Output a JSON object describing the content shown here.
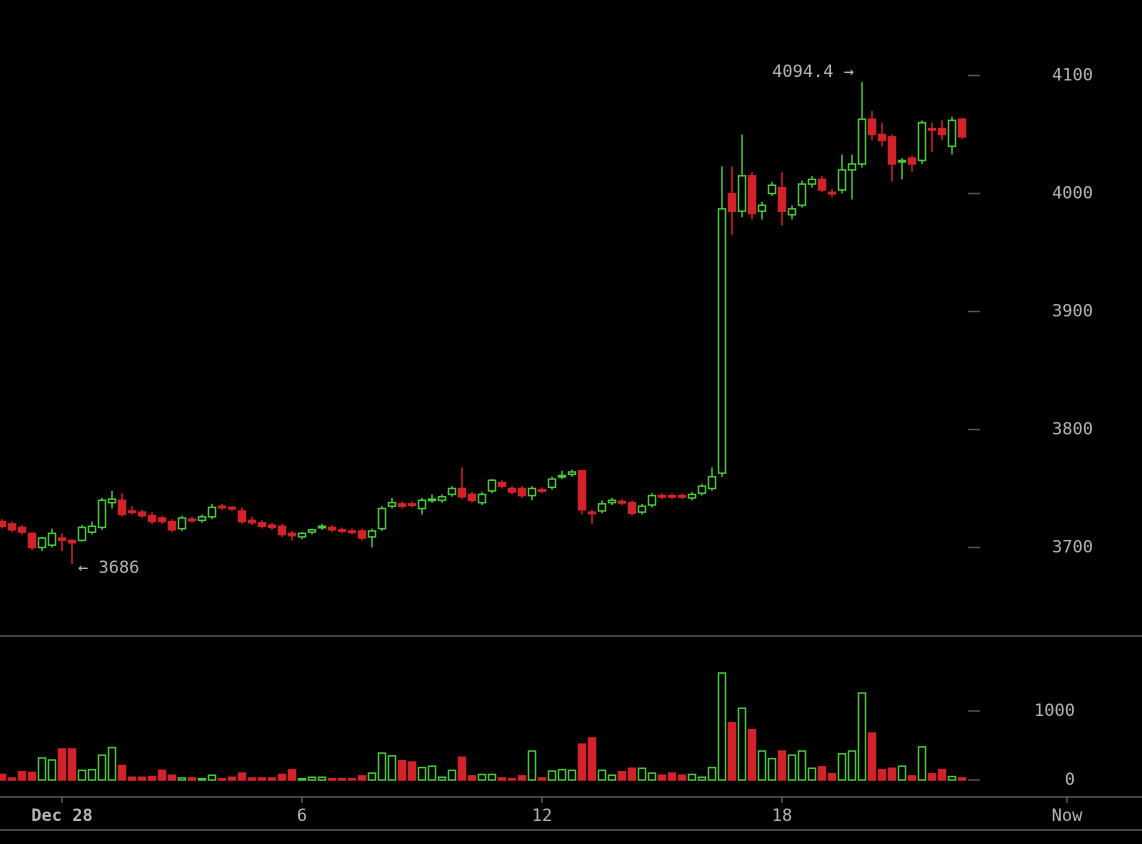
{
  "chart_data": [
    {
      "type": "candlestick",
      "up_color": "#4ec83f",
      "down_color": "#d2232a",
      "xlim": [
        -0.2,
        114
      ],
      "ylim": [
        3625,
        4164
      ],
      "yticks": [
        3700,
        3800,
        3900,
        4000,
        4100
      ],
      "annotations": [
        {
          "text": "4094.4 →",
          "value": 4094.4
        },
        {
          "text": "← 3686",
          "value": 3686
        }
      ],
      "open": [
        3722,
        3720,
        3717,
        3712,
        3700,
        3702,
        3708,
        3706,
        3706,
        3713,
        3717,
        3738,
        3740,
        3731,
        3730,
        3727,
        3725,
        3722,
        3716,
        3724,
        3723,
        3726,
        3735,
        3734,
        3731,
        3723,
        3721,
        3719,
        3718,
        3712,
        3709,
        3713,
        3717,
        3717,
        3715,
        3714,
        3714,
        3709,
        3716,
        3735,
        3737,
        3737,
        3733,
        3740,
        3740,
        3745,
        3750,
        3745,
        3738,
        3748,
        3755,
        3750,
        3750,
        3744,
        3749,
        3751,
        3760,
        3762,
        3765,
        3730,
        3731,
        3738,
        3739,
        3738,
        3730,
        3736,
        3744,
        3744,
        3744,
        3742,
        3746,
        3750,
        3763,
        4000,
        3985,
        4015,
        3985,
        4000,
        4005,
        3982,
        3990,
        4008,
        4012,
        4001,
        4003,
        4020,
        4025,
        4063,
        4050,
        4048,
        4027,
        4030,
        4028,
        4055,
        4055,
        4040,
        4063
      ],
      "high": [
        3724,
        3722,
        3719,
        3713,
        3709,
        3716,
        3712,
        3707,
        3719,
        3722,
        3742,
        3748,
        3746,
        3735,
        3732,
        3730,
        3727,
        3724,
        3727,
        3726,
        3728,
        3737,
        3737,
        3735,
        3734,
        3726,
        3723,
        3721,
        3720,
        3714,
        3713,
        3716,
        3720,
        3719,
        3717,
        3716,
        3716,
        3716,
        3735,
        3742,
        3739,
        3739,
        3742,
        3745,
        3745,
        3752,
        3768,
        3747,
        3747,
        3758,
        3757,
        3752,
        3752,
        3752,
        3751,
        3760,
        3765,
        3766,
        3766,
        3732,
        3740,
        3742,
        3741,
        3740,
        3737,
        3746,
        3746,
        3746,
        3746,
        3747,
        3754,
        3768,
        4023,
        4023,
        4050,
        4018,
        3993,
        4010,
        4018,
        3990,
        4011,
        4015,
        4015,
        4004,
        4033,
        4033,
        4094.4,
        4070,
        4060,
        4050,
        4030,
        4032,
        4062,
        4060,
        4062,
        4065,
        4064
      ],
      "low": [
        3716,
        3713,
        3711,
        3698,
        3697,
        3700,
        3697,
        3686,
        3705,
        3711,
        3715,
        3733,
        3726,
        3728,
        3725,
        3720,
        3720,
        3713,
        3714,
        3721,
        3721,
        3724,
        3732,
        3731,
        3720,
        3719,
        3716,
        3715,
        3709,
        3706,
        3707,
        3711,
        3715,
        3713,
        3712,
        3711,
        3706,
        3700,
        3714,
        3733,
        3733,
        3734,
        3728,
        3738,
        3738,
        3743,
        3741,
        3738,
        3736,
        3746,
        3750,
        3745,
        3742,
        3740,
        3746,
        3749,
        3758,
        3760,
        3728,
        3720,
        3729,
        3736,
        3736,
        3727,
        3728,
        3734,
        3741,
        3741,
        3741,
        3740,
        3744,
        3748,
        3760,
        3965,
        3980,
        3978,
        3978,
        3998,
        3973,
        3978,
        3988,
        4005,
        4001,
        3997,
        4000,
        3995,
        4022,
        4045,
        4040,
        4010,
        4012,
        4018,
        4025,
        4035,
        4045,
        4033,
        4046
      ],
      "close": [
        3718,
        3715,
        3713,
        3700,
        3708,
        3712,
        3706,
        3704,
        3717,
        3718,
        3740,
        3741,
        3728,
        3730,
        3727,
        3722,
        3722,
        3715,
        3725,
        3723,
        3726,
        3734,
        3734,
        3733,
        3722,
        3721,
        3718,
        3717,
        3711,
        3710,
        3712,
        3715,
        3718,
        3715,
        3714,
        3713,
        3708,
        3714,
        3733,
        3738,
        3735,
        3736,
        3740,
        3741,
        3743,
        3750,
        3743,
        3740,
        3745,
        3757,
        3752,
        3747,
        3744,
        3750,
        3748,
        3758,
        3761,
        3764,
        3732,
        3729,
        3737,
        3740,
        3738,
        3729,
        3735,
        3744,
        3743,
        3743,
        3743,
        3745,
        3752,
        3760,
        3987,
        3985,
        4015,
        3983,
        3990,
        4007,
        3985,
        3987,
        4008,
        4012,
        4003,
        4000,
        4020,
        4025,
        4063,
        4050,
        4045,
        4025,
        4028,
        4025,
        4060,
        4054,
        4050,
        4062,
        4048
      ]
    },
    {
      "type": "bar",
      "xlim": [
        -0.2,
        114
      ],
      "ylim": [
        -246,
        2072
      ],
      "yticks": [
        0,
        1000
      ],
      "xticks": [
        {
          "value": 6,
          "label": "Dec 28"
        },
        {
          "value": 30,
          "label": "6"
        },
        {
          "value": 54,
          "label": "12"
        },
        {
          "value": 78,
          "label": "18"
        },
        {
          "value": 106.5,
          "label": "Now"
        }
      ],
      "values": [
        80,
        30,
        120,
        110,
        320,
        290,
        450,
        450,
        140,
        150,
        360,
        470,
        210,
        40,
        40,
        50,
        140,
        70,
        30,
        30,
        20,
        70,
        20,
        40,
        100,
        30,
        30,
        30,
        80,
        150,
        20,
        40,
        40,
        20,
        20,
        20,
        60,
        100,
        390,
        350,
        280,
        260,
        180,
        200,
        40,
        140,
        330,
        60,
        80,
        80,
        30,
        20,
        60,
        420,
        30,
        130,
        150,
        140,
        520,
        610,
        140,
        70,
        120,
        170,
        170,
        100,
        70,
        100,
        70,
        80,
        40,
        180,
        1550,
        830,
        1040,
        730,
        420,
        310,
        420,
        360,
        420,
        170,
        190,
        90,
        380,
        420,
        1260,
        680,
        150,
        170,
        200,
        60,
        480,
        90,
        150,
        50,
        30
      ]
    }
  ]
}
